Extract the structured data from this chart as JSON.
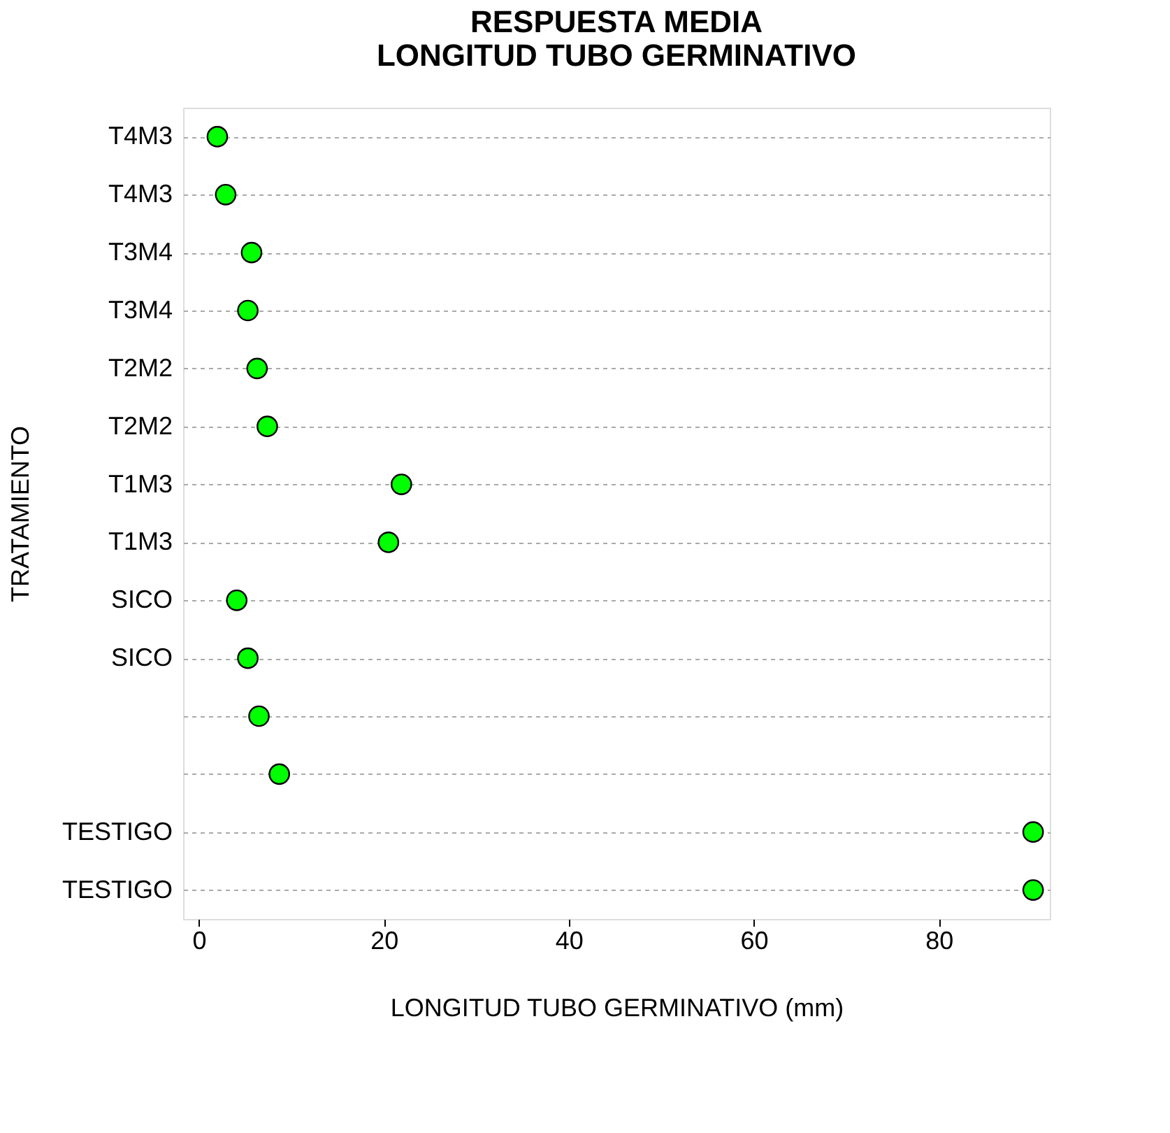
{
  "chart_data": {
    "type": "scatter",
    "title": "RESPUESTA MEDIA\nLONGITUD TUBO GERMINATIVO",
    "xlabel": "LONGITUD TUBO GERMINATIVO (mm)",
    "ylabel": "TRATAMIENTO",
    "categories": [
      "T4M3",
      "T4M3",
      "T3M4",
      "T3M4",
      "T2M2",
      "T2M2",
      "T1M3",
      "T1M3",
      "SICO",
      "SICO",
      null,
      null,
      "TESTIGO",
      "TESTIGO"
    ],
    "orientation": "horizontal",
    "series": [
      {
        "color": "#00ff00",
        "values": [
          2.0,
          2.9,
          5.7,
          5.3,
          6.3,
          7.4,
          21.9,
          20.5,
          4.1,
          5.3,
          6.5,
          8.7,
          90.2,
          90.2
        ]
      }
    ],
    "xlim": [
      -1.7,
      92
    ],
    "xticks": [
      0,
      20,
      40,
      60,
      80
    ],
    "grid": "y",
    "marker": "circle",
    "legend": false
  }
}
